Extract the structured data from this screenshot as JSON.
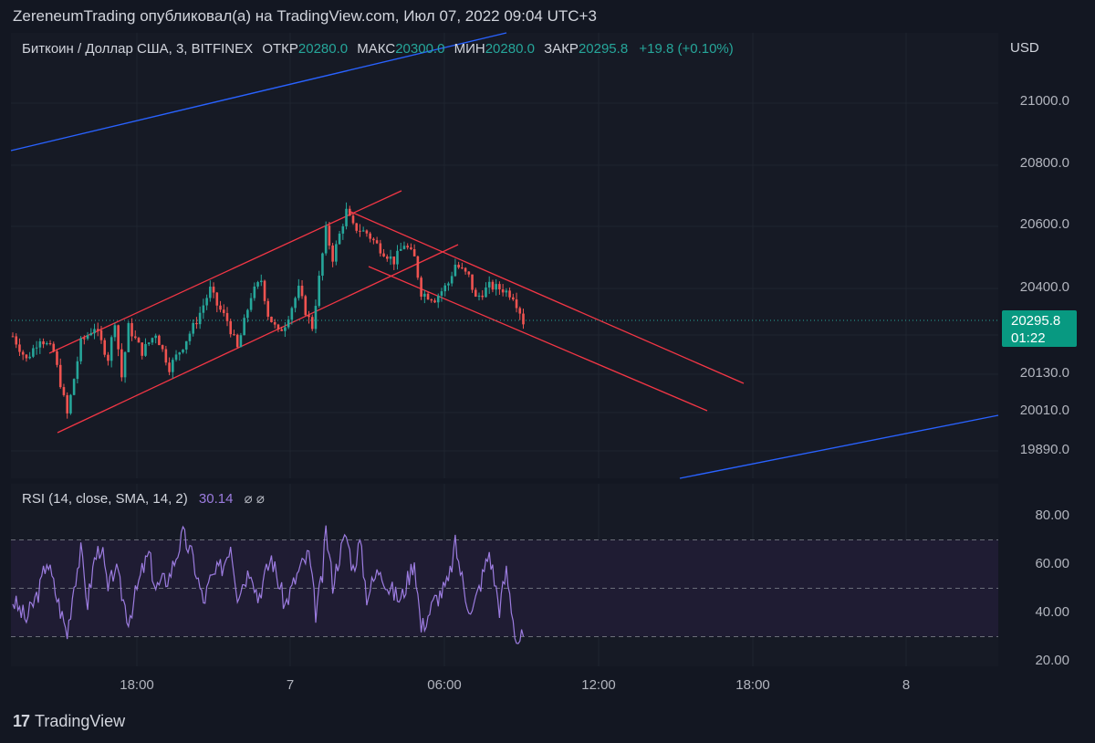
{
  "header": {
    "published_by": "ZereneumTrading опубликовал(а) на TradingView.com, Июл 07, 2022 09:04 UTC+3"
  },
  "legend": {
    "symbol": "Биткоин / Доллар США, 3, BITFINEX",
    "open_label": "ОТКР",
    "open": "20280.0",
    "high_label": "МАКС",
    "high": "20300.0",
    "low_label": "МИН",
    "low": "20280.0",
    "close_label": "ЗАКР",
    "close": "20295.8",
    "change": "+19.8 (+0.10%)"
  },
  "rsi_legend": {
    "title": "RSI (14, close, SMA, 14, 2)",
    "value": "30.14",
    "icons": "⌀ ⌀"
  },
  "branding": {
    "logo_text": "TradingView",
    "logo_mark": "17"
  },
  "colors": {
    "up": "#26a69a",
    "down": "#ef5350",
    "channel": "#f23645",
    "trend": "#2962ff",
    "rsi": "#9c7ce0",
    "price_tag": "#089981"
  },
  "chart_data": [
    {
      "type": "candlestick",
      "title": "Биткоин / Доллар США, 3, BITFINEX",
      "currency": "USD",
      "y_ticks": [
        "21000.0",
        "20800.0",
        "20600.0",
        "20400.0",
        "20130.0",
        "20010.0",
        "19890.0"
      ],
      "x_ticks": [
        "18:00",
        "7",
        "06:00",
        "12:00",
        "18:00",
        "8"
      ],
      "last_price": "20295.8",
      "countdown": "01:22",
      "price_path": [
        [
          0,
          20250
        ],
        [
          4,
          20175
        ],
        [
          8,
          20245
        ],
        [
          12,
          20200
        ],
        [
          16,
          20000
        ],
        [
          20,
          20230
        ],
        [
          24,
          20280
        ],
        [
          28,
          20180
        ],
        [
          30,
          20300
        ],
        [
          32,
          20120
        ],
        [
          34,
          20280
        ],
        [
          38,
          20200
        ],
        [
          42,
          20260
        ],
        [
          46,
          20150
        ],
        [
          50,
          20220
        ],
        [
          54,
          20300
        ],
        [
          58,
          20400
        ],
        [
          60,
          20350
        ],
        [
          63,
          20300
        ],
        [
          66,
          20210
        ],
        [
          70,
          20380
        ],
        [
          73,
          20430
        ],
        [
          75,
          20320
        ],
        [
          78,
          20260
        ],
        [
          80,
          20290
        ],
        [
          84,
          20400
        ],
        [
          86,
          20330
        ],
        [
          88,
          20280
        ],
        [
          92,
          20590
        ],
        [
          94,
          20500
        ],
        [
          98,
          20650
        ],
        [
          100,
          20600
        ],
        [
          104,
          20580
        ],
        [
          108,
          20530
        ],
        [
          112,
          20490
        ],
        [
          115,
          20545
        ],
        [
          118,
          20500
        ],
        [
          120,
          20390
        ],
        [
          124,
          20370
        ],
        [
          128,
          20420
        ],
        [
          130,
          20480
        ],
        [
          134,
          20440
        ],
        [
          136,
          20370
        ],
        [
          140,
          20410
        ],
        [
          144,
          20400
        ],
        [
          147,
          20380
        ],
        [
          149,
          20330
        ],
        [
          150,
          20295.8
        ]
      ]
    },
    {
      "type": "line",
      "title": "RSI (14, close, SMA, 14, 2)",
      "y_ticks": [
        "80.00",
        "60.00",
        "40.00",
        "20.00"
      ],
      "levels": [
        70,
        50,
        30
      ],
      "ylim": [
        20,
        80
      ],
      "values": [
        [
          0,
          45
        ],
        [
          4,
          37
        ],
        [
          8,
          50
        ],
        [
          10,
          62
        ],
        [
          13,
          46
        ],
        [
          16,
          31
        ],
        [
          18,
          52
        ],
        [
          20,
          65
        ],
        [
          22,
          44
        ],
        [
          24,
          62
        ],
        [
          26,
          68
        ],
        [
          28,
          48
        ],
        [
          30,
          59
        ],
        [
          34,
          37
        ],
        [
          38,
          57
        ],
        [
          40,
          64
        ],
        [
          42,
          50
        ],
        [
          46,
          55
        ],
        [
          50,
          72
        ],
        [
          53,
          62
        ],
        [
          56,
          44
        ],
        [
          58,
          53
        ],
        [
          62,
          60
        ],
        [
          64,
          69
        ],
        [
          66,
          48
        ],
        [
          70,
          59
        ],
        [
          72,
          46
        ],
        [
          76,
          63
        ],
        [
          80,
          43
        ],
        [
          84,
          57
        ],
        [
          87,
          64
        ],
        [
          89,
          40
        ],
        [
          91,
          55
        ],
        [
          92,
          74
        ],
        [
          94,
          52
        ],
        [
          96,
          64
        ],
        [
          98,
          72
        ],
        [
          100,
          58
        ],
        [
          102,
          69
        ],
        [
          104,
          47
        ],
        [
          108,
          59
        ],
        [
          110,
          51
        ],
        [
          114,
          45
        ],
        [
          118,
          62
        ],
        [
          120,
          33
        ],
        [
          124,
          45
        ],
        [
          128,
          52
        ],
        [
          130,
          68
        ],
        [
          133,
          47
        ],
        [
          135,
          40
        ],
        [
          138,
          55
        ],
        [
          140,
          65
        ],
        [
          143,
          42
        ],
        [
          145,
          57
        ],
        [
          148,
          28
        ],
        [
          150,
          30.14
        ]
      ]
    }
  ]
}
